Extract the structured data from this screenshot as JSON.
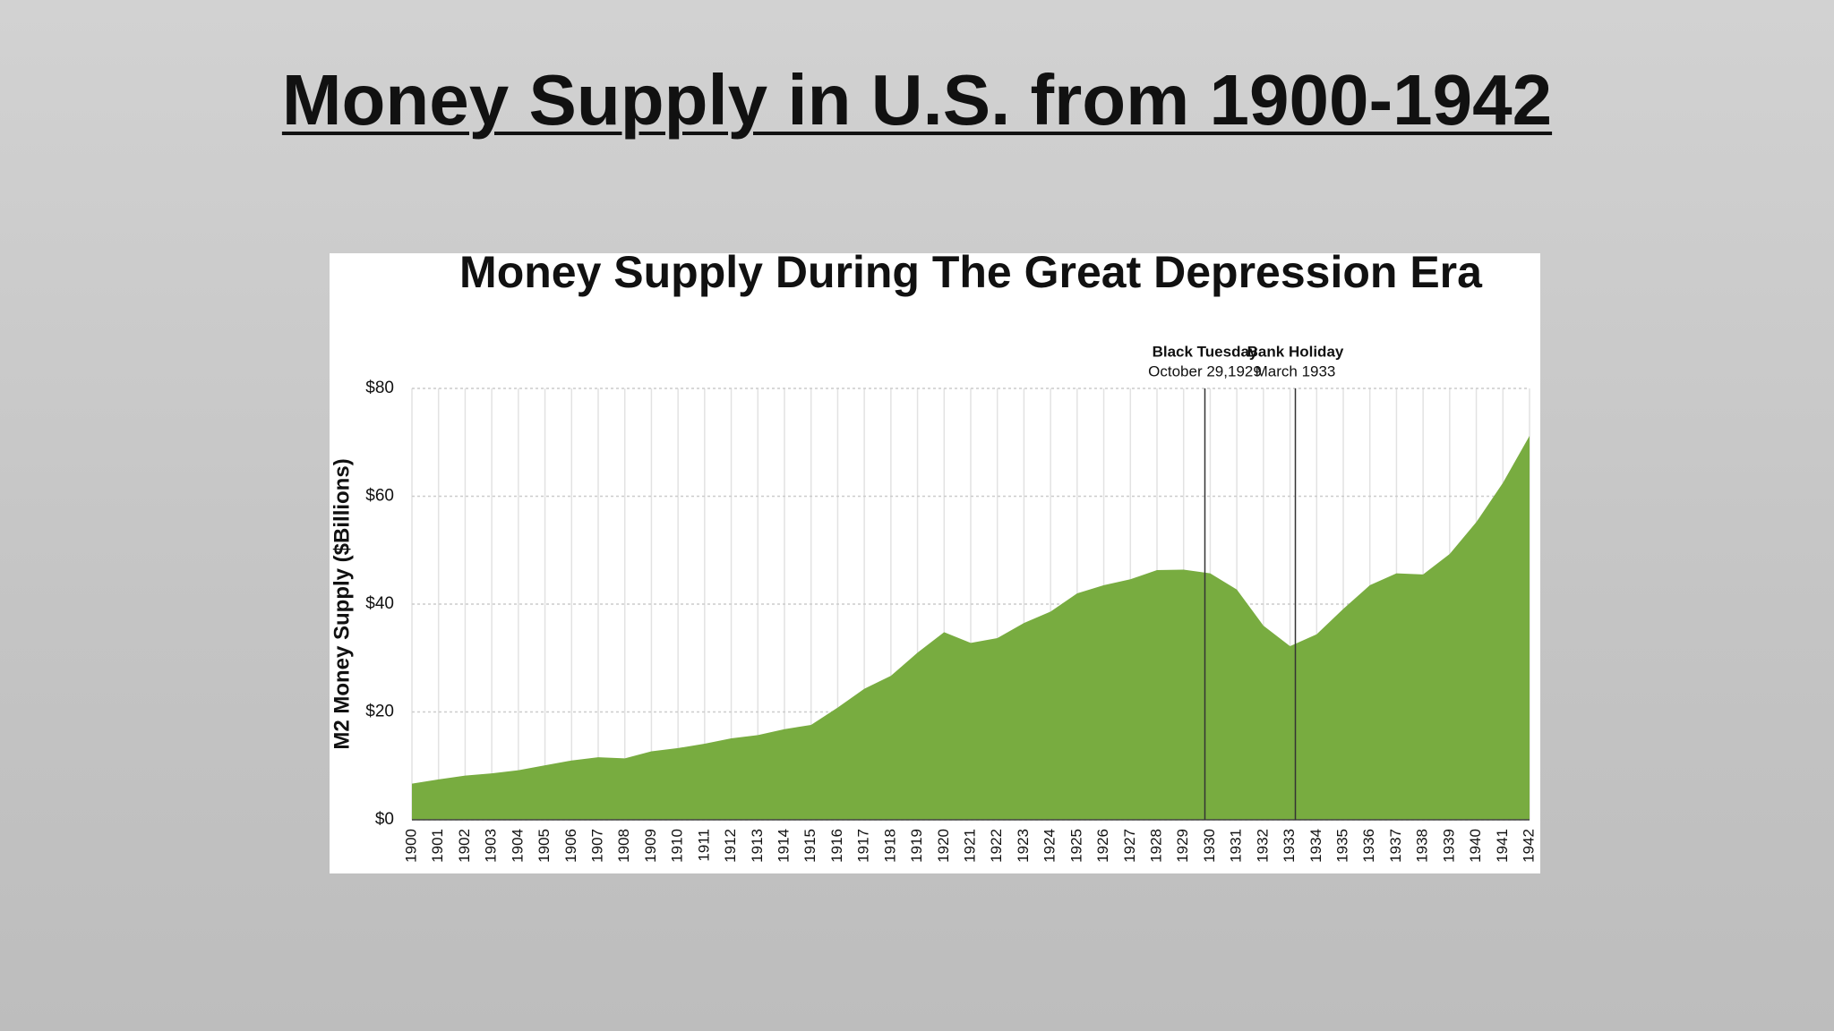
{
  "slide_title": "Money Supply in U.S. from 1900-1942",
  "chart_data": {
    "type": "area",
    "title": "Money Supply During The Great Depression Era",
    "ylabel": "M2 Money Supply ($Billions)",
    "x": [
      1900,
      1901,
      1902,
      1903,
      1904,
      1905,
      1906,
      1907,
      1908,
      1909,
      1910,
      1911,
      1912,
      1913,
      1914,
      1915,
      1916,
      1917,
      1918,
      1919,
      1920,
      1921,
      1922,
      1923,
      1924,
      1925,
      1926,
      1927,
      1928,
      1929,
      1930,
      1931,
      1932,
      1933,
      1934,
      1935,
      1936,
      1937,
      1938,
      1939,
      1940,
      1941,
      1942
    ],
    "values": [
      6.7,
      7.5,
      8.2,
      8.6,
      9.2,
      10.1,
      11.0,
      11.6,
      11.4,
      12.7,
      13.3,
      14.1,
      15.1,
      15.7,
      16.8,
      17.6,
      20.8,
      24.3,
      26.7,
      31.0,
      34.8,
      32.8,
      33.7,
      36.5,
      38.6,
      42.0,
      43.5,
      44.6,
      46.3,
      46.4,
      45.7,
      42.7,
      36.0,
      32.2,
      34.4,
      39.1,
      43.5,
      45.7,
      45.5,
      49.3,
      55.2,
      62.5,
      71.2
    ],
    "color": "#78ac40",
    "xlim": [
      1900,
      1942
    ],
    "ylim": [
      0,
      80
    ],
    "yticks": [
      {
        "value": 0,
        "label": "$0"
      },
      {
        "value": 20,
        "label": "$20"
      },
      {
        "value": 40,
        "label": "$40"
      },
      {
        "value": 60,
        "label": "$60"
      },
      {
        "value": 80,
        "label": "$80"
      }
    ],
    "grid": true,
    "annotations": [
      {
        "text": "Black Tuesday",
        "subtext": "October 29,1929",
        "x": 1929.8
      },
      {
        "text": "Bank Holiday",
        "subtext": "March 1933",
        "x": 1933.2
      }
    ]
  }
}
